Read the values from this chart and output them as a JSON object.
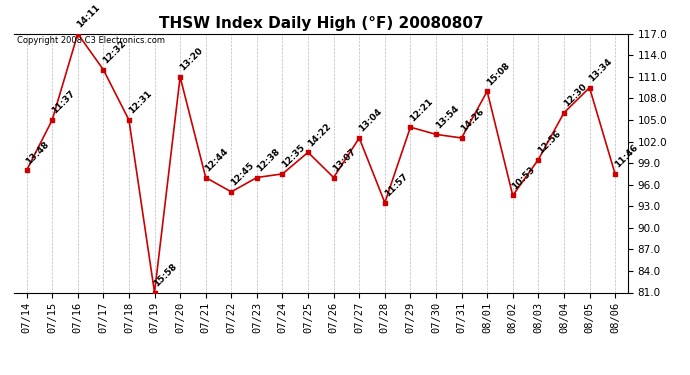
{
  "title": "THSW Index Daily High (°F) 20080807",
  "copyright": "Copyright 2008 C3 Electronics.com",
  "dates": [
    "07/14",
    "07/15",
    "07/16",
    "07/17",
    "07/18",
    "07/19",
    "07/20",
    "07/21",
    "07/22",
    "07/23",
    "07/24",
    "07/25",
    "07/26",
    "07/27",
    "07/28",
    "07/29",
    "07/30",
    "07/31",
    "08/01",
    "08/02",
    "08/03",
    "08/04",
    "08/05",
    "08/06"
  ],
  "values": [
    98.0,
    105.0,
    117.0,
    112.0,
    105.0,
    81.0,
    111.0,
    97.0,
    95.0,
    97.0,
    97.5,
    100.5,
    97.0,
    102.5,
    93.5,
    104.0,
    103.0,
    102.5,
    109.0,
    94.5,
    99.5,
    106.0,
    109.5,
    97.5
  ],
  "labels": [
    "13:48",
    "11:37",
    "14:11",
    "12:32",
    "12:31",
    "15:58",
    "13:20",
    "12:44",
    "12:45",
    "12:38",
    "12:35",
    "14:22",
    "13:07",
    "13:04",
    "11:57",
    "12:21",
    "13:54",
    "14:26",
    "15:08",
    "10:53",
    "12:56",
    "12:30",
    "13:34",
    "11:46"
  ],
  "line_color": "#CC0000",
  "marker_color": "#CC0000",
  "bg_color": "#FFFFFF",
  "grid_color": "#BBBBBB",
  "ylim": [
    81.0,
    117.0
  ],
  "yticks": [
    81.0,
    84.0,
    87.0,
    90.0,
    93.0,
    96.0,
    99.0,
    102.0,
    105.0,
    108.0,
    111.0,
    114.0,
    117.0
  ],
  "title_fontsize": 11,
  "label_fontsize": 6.5,
  "tick_fontsize": 7.5,
  "copyright_fontsize": 6
}
